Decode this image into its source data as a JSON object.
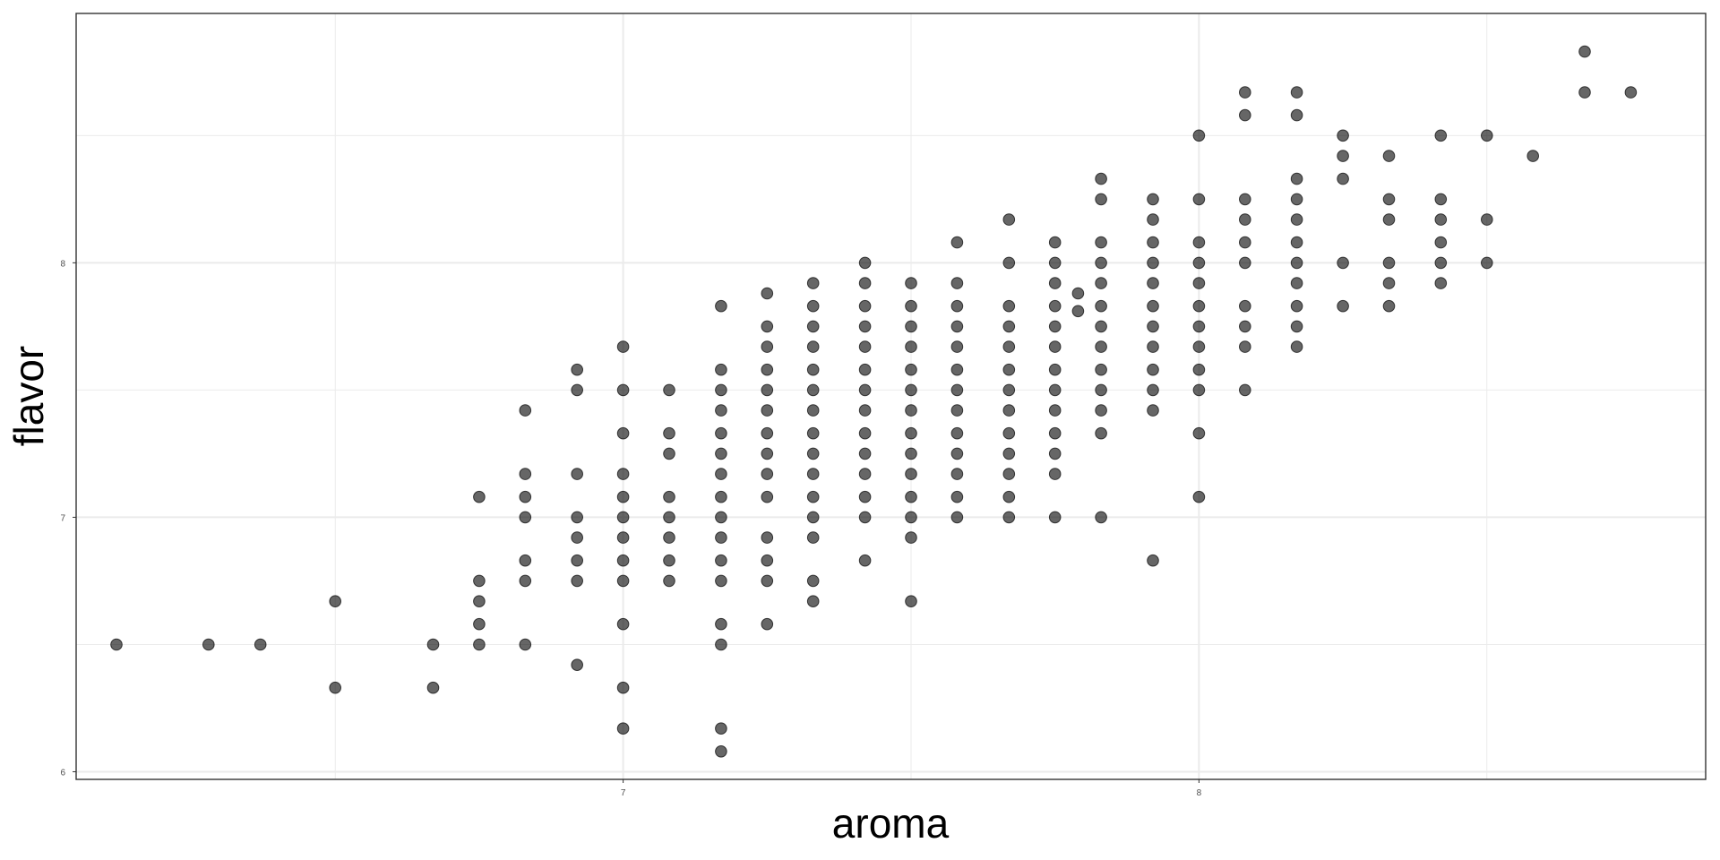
{
  "chart_data": {
    "type": "scatter",
    "title": "",
    "xlabel": "aroma",
    "ylabel": "flavor",
    "xlim": [
      6.05,
      8.88
    ],
    "ylim": [
      5.97,
      8.98
    ],
    "x_ticks": [
      7,
      8
    ],
    "y_ticks": [
      6,
      7,
      8
    ],
    "x_tick_labels": [
      "7",
      "8"
    ],
    "y_tick_labels": [
      "6",
      "7",
      "8"
    ],
    "grid": true,
    "legend": "none",
    "point_color": "#000000",
    "point_opacity": 0.6,
    "points": [
      [
        6.12,
        6.5
      ],
      [
        6.28,
        6.5
      ],
      [
        6.37,
        6.5
      ],
      [
        6.5,
        6.67
      ],
      [
        6.5,
        6.33
      ],
      [
        6.67,
        6.5
      ],
      [
        6.67,
        6.33
      ],
      [
        6.75,
        6.75
      ],
      [
        6.75,
        6.67
      ],
      [
        6.75,
        6.58
      ],
      [
        6.75,
        6.5
      ],
      [
        6.75,
        7.08
      ],
      [
        6.83,
        7.42
      ],
      [
        6.83,
        7.17
      ],
      [
        6.83,
        7.08
      ],
      [
        6.83,
        7.0
      ],
      [
        6.83,
        6.83
      ],
      [
        6.83,
        6.75
      ],
      [
        6.83,
        6.5
      ],
      [
        6.92,
        7.58
      ],
      [
        6.92,
        7.5
      ],
      [
        6.92,
        7.17
      ],
      [
        6.92,
        7.0
      ],
      [
        6.92,
        6.92
      ],
      [
        6.92,
        6.83
      ],
      [
        6.92,
        6.75
      ],
      [
        6.92,
        6.42
      ],
      [
        7.0,
        7.67
      ],
      [
        7.0,
        7.5
      ],
      [
        7.0,
        7.33
      ],
      [
        7.0,
        7.17
      ],
      [
        7.0,
        7.08
      ],
      [
        7.0,
        7.0
      ],
      [
        7.0,
        6.92
      ],
      [
        7.0,
        6.83
      ],
      [
        7.0,
        6.75
      ],
      [
        7.0,
        6.58
      ],
      [
        7.0,
        6.33
      ],
      [
        7.0,
        6.17
      ],
      [
        7.08,
        7.5
      ],
      [
        7.08,
        7.33
      ],
      [
        7.08,
        7.25
      ],
      [
        7.08,
        7.08
      ],
      [
        7.08,
        7.0
      ],
      [
        7.08,
        6.92
      ],
      [
        7.08,
        6.83
      ],
      [
        7.08,
        6.75
      ],
      [
        7.17,
        7.83
      ],
      [
        7.17,
        7.58
      ],
      [
        7.17,
        7.5
      ],
      [
        7.17,
        7.42
      ],
      [
        7.17,
        7.33
      ],
      [
        7.17,
        7.25
      ],
      [
        7.17,
        7.17
      ],
      [
        7.17,
        7.08
      ],
      [
        7.17,
        7.0
      ],
      [
        7.17,
        6.92
      ],
      [
        7.17,
        6.83
      ],
      [
        7.17,
        6.75
      ],
      [
        7.17,
        6.58
      ],
      [
        7.17,
        6.5
      ],
      [
        7.17,
        6.17
      ],
      [
        7.17,
        6.08
      ],
      [
        7.25,
        7.88
      ],
      [
        7.25,
        7.75
      ],
      [
        7.25,
        7.67
      ],
      [
        7.25,
        7.58
      ],
      [
        7.25,
        7.5
      ],
      [
        7.25,
        7.42
      ],
      [
        7.25,
        7.33
      ],
      [
        7.25,
        7.25
      ],
      [
        7.25,
        7.17
      ],
      [
        7.25,
        7.08
      ],
      [
        7.25,
        6.92
      ],
      [
        7.25,
        6.83
      ],
      [
        7.25,
        6.75
      ],
      [
        7.25,
        6.58
      ],
      [
        7.33,
        7.92
      ],
      [
        7.33,
        7.83
      ],
      [
        7.33,
        7.75
      ],
      [
        7.33,
        7.67
      ],
      [
        7.33,
        7.58
      ],
      [
        7.33,
        7.5
      ],
      [
        7.33,
        7.42
      ],
      [
        7.33,
        7.33
      ],
      [
        7.33,
        7.25
      ],
      [
        7.33,
        7.17
      ],
      [
        7.33,
        7.08
      ],
      [
        7.33,
        7.0
      ],
      [
        7.33,
        6.92
      ],
      [
        7.33,
        6.75
      ],
      [
        7.33,
        6.67
      ],
      [
        7.42,
        8.0
      ],
      [
        7.42,
        7.92
      ],
      [
        7.42,
        7.83
      ],
      [
        7.42,
        7.75
      ],
      [
        7.42,
        7.67
      ],
      [
        7.42,
        7.58
      ],
      [
        7.42,
        7.5
      ],
      [
        7.42,
        7.42
      ],
      [
        7.42,
        7.33
      ],
      [
        7.42,
        7.25
      ],
      [
        7.42,
        7.17
      ],
      [
        7.42,
        7.08
      ],
      [
        7.42,
        7.0
      ],
      [
        7.42,
        6.83
      ],
      [
        7.5,
        7.92
      ],
      [
        7.5,
        7.83
      ],
      [
        7.5,
        7.75
      ],
      [
        7.5,
        7.67
      ],
      [
        7.5,
        7.58
      ],
      [
        7.5,
        7.5
      ],
      [
        7.5,
        7.42
      ],
      [
        7.5,
        7.33
      ],
      [
        7.5,
        7.25
      ],
      [
        7.5,
        7.17
      ],
      [
        7.5,
        7.08
      ],
      [
        7.5,
        7.0
      ],
      [
        7.5,
        6.92
      ],
      [
        7.5,
        6.67
      ],
      [
        7.58,
        8.08
      ],
      [
        7.58,
        7.92
      ],
      [
        7.58,
        7.83
      ],
      [
        7.58,
        7.75
      ],
      [
        7.58,
        7.67
      ],
      [
        7.58,
        7.58
      ],
      [
        7.58,
        7.5
      ],
      [
        7.58,
        7.42
      ],
      [
        7.58,
        7.33
      ],
      [
        7.58,
        7.25
      ],
      [
        7.58,
        7.17
      ],
      [
        7.58,
        7.08
      ],
      [
        7.58,
        7.0
      ],
      [
        7.67,
        8.17
      ],
      [
        7.67,
        8.0
      ],
      [
        7.67,
        7.83
      ],
      [
        7.67,
        7.75
      ],
      [
        7.67,
        7.67
      ],
      [
        7.67,
        7.58
      ],
      [
        7.67,
        7.5
      ],
      [
        7.67,
        7.42
      ],
      [
        7.67,
        7.33
      ],
      [
        7.67,
        7.25
      ],
      [
        7.67,
        7.17
      ],
      [
        7.67,
        7.08
      ],
      [
        7.67,
        7.0
      ],
      [
        7.75,
        8.08
      ],
      [
        7.75,
        8.0
      ],
      [
        7.75,
        7.92
      ],
      [
        7.75,
        7.83
      ],
      [
        7.75,
        7.75
      ],
      [
        7.75,
        7.67
      ],
      [
        7.75,
        7.58
      ],
      [
        7.75,
        7.5
      ],
      [
        7.75,
        7.42
      ],
      [
        7.75,
        7.33
      ],
      [
        7.75,
        7.25
      ],
      [
        7.75,
        7.17
      ],
      [
        7.75,
        7.0
      ],
      [
        7.79,
        7.88
      ],
      [
        7.79,
        7.81
      ],
      [
        7.83,
        8.33
      ],
      [
        7.83,
        8.25
      ],
      [
        7.83,
        8.08
      ],
      [
        7.83,
        8.0
      ],
      [
        7.83,
        7.92
      ],
      [
        7.83,
        7.83
      ],
      [
        7.83,
        7.75
      ],
      [
        7.83,
        7.67
      ],
      [
        7.83,
        7.58
      ],
      [
        7.83,
        7.5
      ],
      [
        7.83,
        7.42
      ],
      [
        7.83,
        7.33
      ],
      [
        7.83,
        7.0
      ],
      [
        7.92,
        8.25
      ],
      [
        7.92,
        8.17
      ],
      [
        7.92,
        8.08
      ],
      [
        7.92,
        8.0
      ],
      [
        7.92,
        7.92
      ],
      [
        7.92,
        7.83
      ],
      [
        7.92,
        7.75
      ],
      [
        7.92,
        7.67
      ],
      [
        7.92,
        7.58
      ],
      [
        7.92,
        7.5
      ],
      [
        7.92,
        7.42
      ],
      [
        7.92,
        6.83
      ],
      [
        8.0,
        8.5
      ],
      [
        8.0,
        8.25
      ],
      [
        8.0,
        8.08
      ],
      [
        8.0,
        8.0
      ],
      [
        8.0,
        7.92
      ],
      [
        8.0,
        7.83
      ],
      [
        8.0,
        7.75
      ],
      [
        8.0,
        7.67
      ],
      [
        8.0,
        7.58
      ],
      [
        8.0,
        7.5
      ],
      [
        8.0,
        7.33
      ],
      [
        8.0,
        7.08
      ],
      [
        8.08,
        8.67
      ],
      [
        8.08,
        8.58
      ],
      [
        8.08,
        8.25
      ],
      [
        8.08,
        8.17
      ],
      [
        8.08,
        8.08
      ],
      [
        8.08,
        8.0
      ],
      [
        8.08,
        7.83
      ],
      [
        8.08,
        7.75
      ],
      [
        8.08,
        7.67
      ],
      [
        8.08,
        7.5
      ],
      [
        8.17,
        8.67
      ],
      [
        8.17,
        8.58
      ],
      [
        8.17,
        8.33
      ],
      [
        8.17,
        8.25
      ],
      [
        8.17,
        8.17
      ],
      [
        8.17,
        8.08
      ],
      [
        8.17,
        8.0
      ],
      [
        8.17,
        7.92
      ],
      [
        8.17,
        7.83
      ],
      [
        8.17,
        7.75
      ],
      [
        8.17,
        7.67
      ],
      [
        8.25,
        8.5
      ],
      [
        8.25,
        8.42
      ],
      [
        8.25,
        8.33
      ],
      [
        8.25,
        8.0
      ],
      [
        8.25,
        7.83
      ],
      [
        8.33,
        8.42
      ],
      [
        8.33,
        8.25
      ],
      [
        8.33,
        8.17
      ],
      [
        8.33,
        8.0
      ],
      [
        8.33,
        7.92
      ],
      [
        8.33,
        7.83
      ],
      [
        8.42,
        8.5
      ],
      [
        8.42,
        8.25
      ],
      [
        8.42,
        8.17
      ],
      [
        8.42,
        8.08
      ],
      [
        8.42,
        8.0
      ],
      [
        8.42,
        7.92
      ],
      [
        8.5,
        8.5
      ],
      [
        8.5,
        8.17
      ],
      [
        8.5,
        8.0
      ],
      [
        8.58,
        8.42
      ],
      [
        8.67,
        8.83
      ],
      [
        8.67,
        8.67
      ],
      [
        8.75,
        8.67
      ]
    ]
  }
}
